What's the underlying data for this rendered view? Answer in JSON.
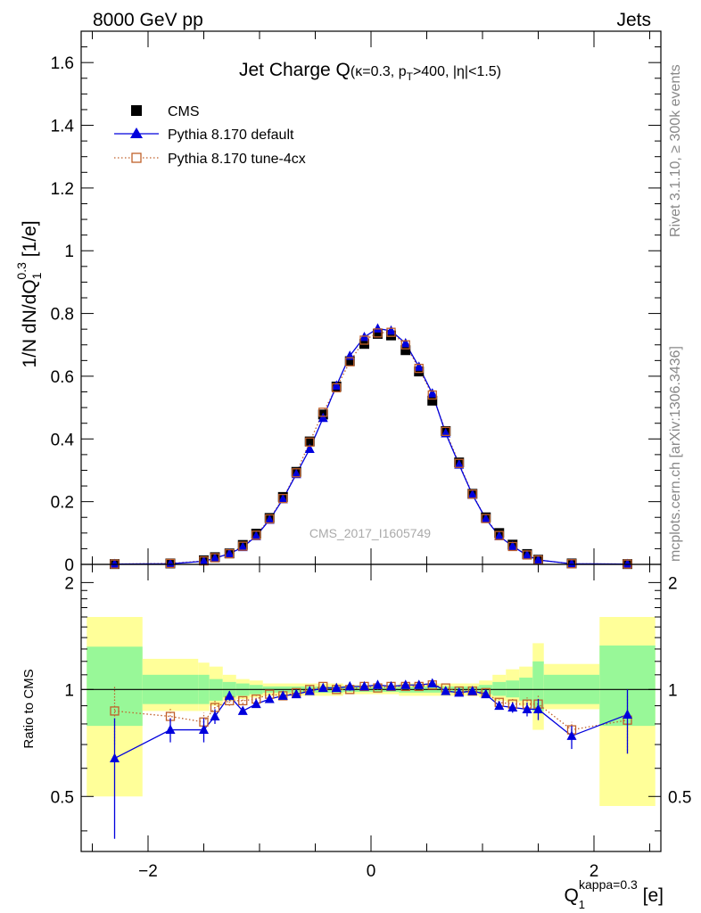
{
  "header": {
    "left": "8000 GeV pp",
    "right": "Jets"
  },
  "side_labels": {
    "rivet": "Rivet 3.1.10, ≥ 300k events",
    "mcplots": "mcplots.cern.ch [arXiv:1306.3436]"
  },
  "watermark": "CMS_2017_I1605749",
  "colors": {
    "data": "#000000",
    "default": "#0000dd",
    "tune": "#c0602a",
    "band_inner": "#98f898",
    "band_outer": "#ffff99"
  },
  "chart_data": [
    {
      "type": "scatter",
      "panel": "main",
      "title": {
        "main": "Jet Charge Q",
        "sub": "(κ=0.3, p",
        "sub_t": "T",
        "sub_rest": ">400, |η|<1.5)"
      },
      "ylabel": {
        "main": "1/N dN/dQ",
        "sub": "1",
        "sup": "0.3",
        "unit": " [1/e]"
      },
      "xlim": [
        -2.6,
        2.6
      ],
      "ylim": [
        0,
        1.7
      ],
      "yticks": [
        0,
        0.2,
        0.4,
        0.6,
        0.8,
        1,
        1.2,
        1.4,
        1.6
      ],
      "ytick_labels": [
        "0",
        "0.2",
        "0.4",
        "0.6",
        "0.8",
        "1",
        "1.2",
        "1.4",
        "1.6"
      ],
      "x": [
        -2.3,
        -1.8,
        -1.5,
        -1.4,
        -1.27,
        -1.15,
        -1.03,
        -0.91,
        -0.79,
        -0.67,
        -0.55,
        -0.43,
        -0.31,
        -0.19,
        -0.06,
        0.06,
        0.18,
        0.31,
        0.43,
        0.55,
        0.67,
        0.79,
        0.91,
        1.03,
        1.15,
        1.27,
        1.4,
        1.5,
        1.8,
        2.3
      ],
      "series": [
        {
          "name": "CMS",
          "marker": "filled-square",
          "values": [
            0.001,
            0.003,
            0.013,
            0.023,
            0.035,
            0.062,
            0.098,
            0.148,
            0.215,
            0.295,
            0.392,
            0.478,
            0.567,
            0.648,
            0.703,
            0.735,
            0.73,
            0.683,
            0.615,
            0.522,
            0.425,
            0.325,
            0.225,
            0.15,
            0.1,
            0.063,
            0.033,
            0.015,
            0.003,
            0.001
          ]
        },
        {
          "name": "Pythia 8.170 default",
          "marker": "filled-triangle",
          "line": "solid",
          "values": [
            0.001,
            0.002,
            0.01,
            0.02,
            0.034,
            0.055,
            0.09,
            0.142,
            0.208,
            0.288,
            0.368,
            0.467,
            0.57,
            0.665,
            0.725,
            0.752,
            0.745,
            0.705,
            0.63,
            0.545,
            0.418,
            0.318,
            0.222,
            0.145,
            0.09,
            0.058,
            0.029,
            0.014,
            0.002,
            0.001
          ]
        },
        {
          "name": "Pythia 8.170 tune-4cx",
          "marker": "open-square",
          "line": "dotted",
          "values": [
            0.001,
            0.003,
            0.011,
            0.021,
            0.034,
            0.058,
            0.093,
            0.145,
            0.21,
            0.292,
            0.39,
            0.485,
            0.563,
            0.646,
            0.715,
            0.738,
            0.74,
            0.7,
            0.625,
            0.54,
            0.424,
            0.322,
            0.224,
            0.146,
            0.092,
            0.057,
            0.03,
            0.014,
            0.002,
            0.001
          ]
        }
      ],
      "legend_position": "top-left"
    },
    {
      "type": "line",
      "panel": "ratio",
      "ylabel": "Ratio to CMS",
      "xlabel": {
        "main": "Q",
        "sub": "1",
        "sup": "kappa=0.3",
        "unit": " [e]"
      },
      "xlim": [
        -2.6,
        2.6
      ],
      "ylim": [
        0.35,
        2.25
      ],
      "xticks": [
        -2,
        0,
        2
      ],
      "xtick_labels": [
        "−2",
        "0",
        "2"
      ],
      "yticks": [
        0.5,
        1,
        2
      ],
      "ytick_labels": [
        "0.5",
        "1",
        "2"
      ],
      "bands": [
        {
          "x0": -2.55,
          "x1": -2.05,
          "inner": [
            0.79,
            1.32
          ],
          "outer": [
            0.5,
            1.6
          ]
        },
        {
          "x0": -2.05,
          "x1": -1.55,
          "inner": [
            0.91,
            1.1
          ],
          "outer": [
            0.87,
            1.22
          ]
        },
        {
          "x0": -1.55,
          "x1": -1.45,
          "inner": [
            0.91,
            1.1
          ],
          "outer": [
            0.87,
            1.19
          ]
        },
        {
          "x0": -1.45,
          "x1": -1.33,
          "inner": [
            0.93,
            1.07
          ],
          "outer": [
            0.9,
            1.16
          ]
        },
        {
          "x0": -1.33,
          "x1": -1.21,
          "inner": [
            0.95,
            1.05
          ],
          "outer": [
            0.93,
            1.1
          ]
        },
        {
          "x0": -1.21,
          "x1": -1.09,
          "inner": [
            0.96,
            1.04
          ],
          "outer": [
            0.94,
            1.07
          ]
        },
        {
          "x0": -1.09,
          "x1": -0.97,
          "inner": [
            0.97,
            1.03
          ],
          "outer": [
            0.95,
            1.06
          ]
        },
        {
          "x0": -0.97,
          "x1": -0.25,
          "inner": [
            0.98,
            1.02
          ],
          "outer": [
            0.96,
            1.04
          ]
        },
        {
          "x0": -0.25,
          "x1": 0.25,
          "inner": [
            0.985,
            1.015
          ],
          "outer": [
            0.97,
            1.03
          ]
        },
        {
          "x0": 0.25,
          "x1": 0.97,
          "inner": [
            0.98,
            1.02
          ],
          "outer": [
            0.96,
            1.04
          ]
        },
        {
          "x0": 0.97,
          "x1": 1.09,
          "inner": [
            0.97,
            1.03
          ],
          "outer": [
            0.95,
            1.06
          ]
        },
        {
          "x0": 1.09,
          "x1": 1.21,
          "inner": [
            0.96,
            1.05
          ],
          "outer": [
            0.93,
            1.1
          ]
        },
        {
          "x0": 1.21,
          "x1": 1.33,
          "inner": [
            0.95,
            1.06
          ],
          "outer": [
            0.92,
            1.14
          ]
        },
        {
          "x0": 1.33,
          "x1": 1.45,
          "inner": [
            0.93,
            1.08
          ],
          "outer": [
            0.9,
            1.16
          ]
        },
        {
          "x0": 1.45,
          "x1": 1.55,
          "inner": [
            0.87,
            1.2
          ],
          "outer": [
            0.77,
            1.35
          ]
        },
        {
          "x0": 1.55,
          "x1": 2.05,
          "inner": [
            0.91,
            1.1
          ],
          "outer": [
            0.88,
            1.18
          ]
        },
        {
          "x0": 2.05,
          "x1": 2.55,
          "inner": [
            0.79,
            1.33
          ],
          "outer": [
            0.47,
            1.6
          ]
        }
      ],
      "x": [
        -2.3,
        -1.8,
        -1.5,
        -1.4,
        -1.27,
        -1.15,
        -1.03,
        -0.91,
        -0.79,
        -0.67,
        -0.55,
        -0.43,
        -0.31,
        -0.19,
        -0.06,
        0.06,
        0.18,
        0.31,
        0.43,
        0.55,
        0.67,
        0.79,
        0.91,
        1.03,
        1.15,
        1.27,
        1.4,
        1.5,
        1.8,
        2.3
      ],
      "series": [
        {
          "name": "Pythia 8.170 default",
          "marker": "filled-triangle",
          "line": "solid",
          "values": [
            0.64,
            0.77,
            0.77,
            0.84,
            0.96,
            0.87,
            0.91,
            0.94,
            0.96,
            0.97,
            0.99,
            1.01,
            1.01,
            1.02,
            1.02,
            1.03,
            1.02,
            1.03,
            1.03,
            1.04,
            0.99,
            0.98,
            0.99,
            0.97,
            0.9,
            0.89,
            0.88,
            0.88,
            0.74,
            0.85
          ],
          "err_lo": [
            0.26,
            0.06,
            0.06,
            0.04,
            0.03,
            0.02,
            0.02,
            0.01,
            0.01,
            0.01,
            0.01,
            0.01,
            0.01,
            0.01,
            0.01,
            0.01,
            0.01,
            0.01,
            0.01,
            0.01,
            0.01,
            0.01,
            0.01,
            0.02,
            0.02,
            0.03,
            0.04,
            0.06,
            0.06,
            0.19
          ],
          "err_hi": [
            0.19,
            0.06,
            0.06,
            0.04,
            0.03,
            0.02,
            0.02,
            0.01,
            0.01,
            0.01,
            0.01,
            0.01,
            0.01,
            0.01,
            0.01,
            0.01,
            0.01,
            0.01,
            0.01,
            0.01,
            0.01,
            0.01,
            0.01,
            0.02,
            0.02,
            0.03,
            0.04,
            0.06,
            0.05,
            0.15
          ]
        },
        {
          "name": "Pythia 8.170 tune-4cx",
          "marker": "open-square",
          "line": "dotted",
          "values": [
            0.87,
            0.84,
            0.81,
            0.89,
            0.93,
            0.93,
            0.94,
            0.97,
            0.96,
            0.98,
            1.0,
            1.02,
            1.0,
            1.0,
            1.02,
            1.01,
            1.02,
            1.02,
            1.02,
            1.03,
            1.01,
            0.99,
            0.99,
            0.98,
            0.92,
            0.91,
            0.91,
            0.91,
            0.77,
            0.82
          ],
          "err_lo": [
            0.17,
            0.05,
            0.05,
            0.04,
            0.03,
            0.02,
            0.02,
            0.01,
            0.01,
            0.01,
            0.01,
            0.01,
            0.01,
            0.01,
            0.01,
            0.01,
            0.01,
            0.01,
            0.01,
            0.01,
            0.01,
            0.01,
            0.01,
            0.02,
            0.02,
            0.03,
            0.04,
            0.05,
            0.04,
            0.16
          ],
          "err_hi": [
            0.15,
            0.05,
            0.05,
            0.04,
            0.03,
            0.02,
            0.02,
            0.01,
            0.01,
            0.01,
            0.01,
            0.01,
            0.01,
            0.01,
            0.01,
            0.01,
            0.01,
            0.01,
            0.01,
            0.01,
            0.01,
            0.01,
            0.01,
            0.02,
            0.02,
            0.03,
            0.04,
            0.05,
            0.04,
            0.14
          ]
        }
      ]
    }
  ]
}
